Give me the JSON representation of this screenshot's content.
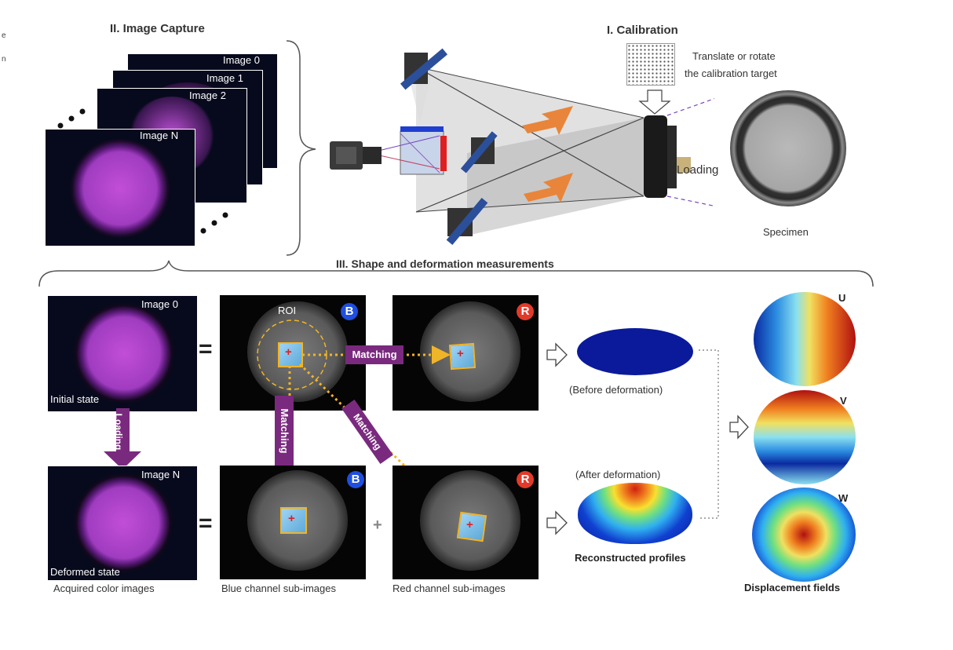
{
  "sections": {
    "capture": "II. Image Capture",
    "calibration": "I. Calibration",
    "measurements": "III. Shape and deformation measurements"
  },
  "capture_stack": {
    "image0": "Image 0",
    "image1": "Image 1",
    "image2": "Image 2",
    "imageN": "Image N"
  },
  "calibration": {
    "note_line1": "Translate or rotate",
    "note_line2": "the calibration target",
    "loading": "Loading",
    "specimen": "Specimen"
  },
  "measurement": {
    "image0": "Image 0",
    "imageN": "Image N",
    "initial_state": "Initial state",
    "deformed_state": "Deformed state",
    "loading_arrow": "Loading",
    "roi": "ROI",
    "badge_blue": "B",
    "badge_red": "R",
    "matching_h": "Matching",
    "matching_v": "Matching",
    "matching_d": "Matching",
    "before": "(Before deformation)",
    "after": "(After deformation)",
    "reconstructed": "Reconstructed profiles",
    "displacement": "Displacement fields",
    "u": "U",
    "v": "V",
    "w": "W",
    "equals": "=",
    "plus": "+"
  },
  "captions": {
    "acquired": "Acquired color images",
    "blue_sub": "Blue channel sub-images",
    "red_sub": "Red channel sub-images"
  },
  "side_fragment": {
    "line1": "e",
    "line2": "n"
  },
  "colors": {
    "magenta": "#c050d8",
    "purple_tag": "#7a2a7e",
    "orange_arrow": "#e8853a",
    "badge_blue": "#1f4fe0",
    "badge_red": "#e23a2a",
    "dashed_yellow": "#f0b429"
  }
}
